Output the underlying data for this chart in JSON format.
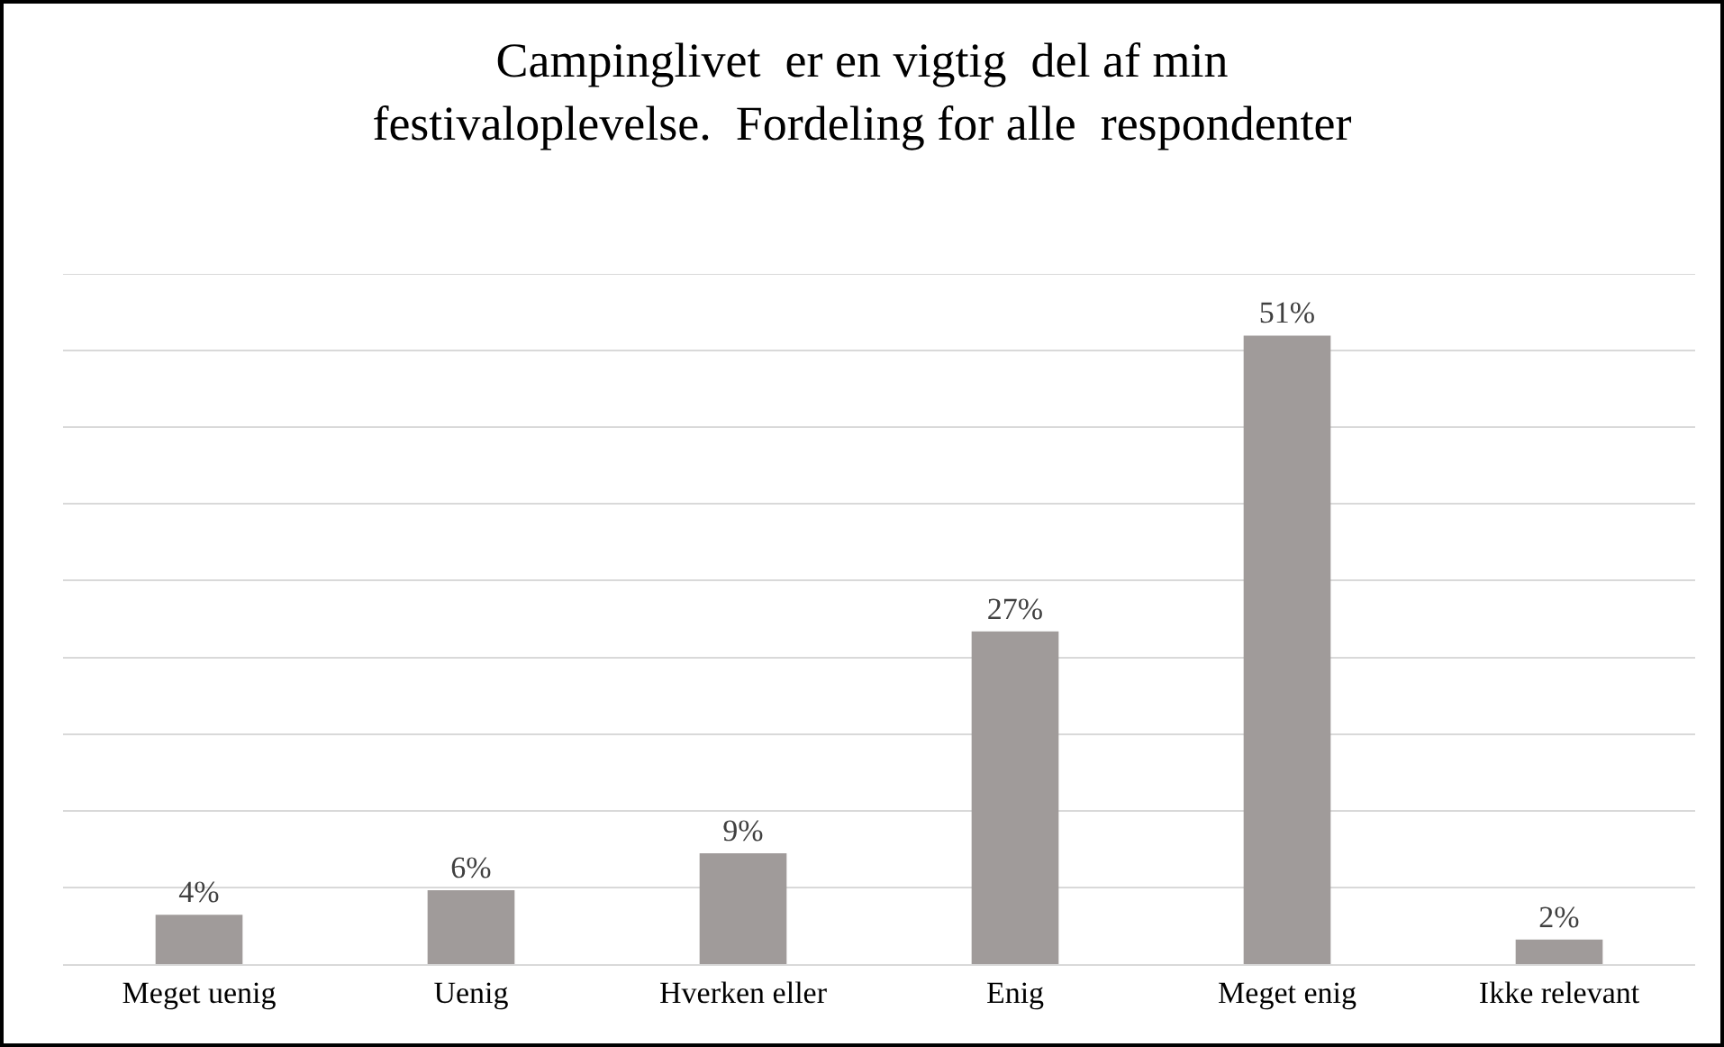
{
  "chart_data": {
    "type": "bar",
    "title": "Campinglivet  er en vigtig  del af min\nfestivaloplevelse.  Fordeling for alle  respondenter",
    "categories": [
      "Meget uenig",
      "Uenig",
      "Hverken eller",
      "Enig",
      "Meget enig",
      "Ikke relevant"
    ],
    "values": [
      4,
      6,
      9,
      27,
      51,
      2
    ],
    "color": "#a09b9a",
    "data_labels": true,
    "value_labels": [
      "4%",
      "6%",
      "9%",
      "27%",
      "51%",
      "2%"
    ],
    "ylim": [
      0,
      56
    ],
    "yticks": [
      {
        "value": 0,
        "label": null
      },
      {
        "value": 6.22,
        "label": null
      },
      {
        "value": 12.44,
        "label": null
      },
      {
        "value": 18.67,
        "label": null
      },
      {
        "value": 24.89,
        "label": null
      },
      {
        "value": 31.11,
        "label": null
      },
      {
        "value": 37.33,
        "label": null
      },
      {
        "value": 43.56,
        "label": null
      },
      {
        "value": 49.78,
        "label": null
      },
      {
        "value": 56,
        "label": null
      }
    ],
    "grid": "y",
    "tick_labels": "x",
    "legend": false
  }
}
